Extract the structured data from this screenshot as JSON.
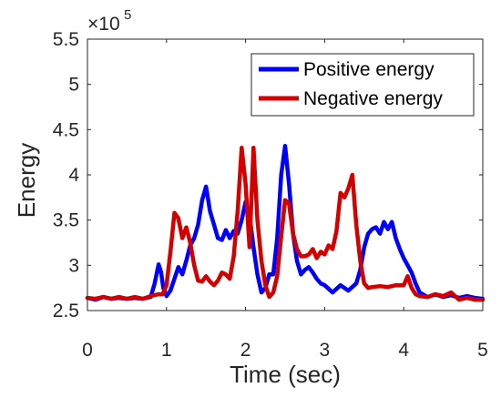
{
  "chart_data": {
    "type": "line",
    "title": "",
    "xlabel": "Time (sec)",
    "ylabel": "Energy",
    "xlim": [
      0,
      5
    ],
    "ylim": [
      250000,
      550000
    ],
    "xticks": [
      0,
      1,
      2,
      3,
      4,
      5
    ],
    "xtick_labels": [
      "0",
      "1",
      "2",
      "3",
      "4",
      "5"
    ],
    "yticks": [
      250000,
      300000,
      350000,
      400000,
      450000,
      500000,
      550000
    ],
    "ytick_labels": [
      "2.5",
      "3",
      "3.5",
      "4",
      "4.5",
      "5",
      "5.5"
    ],
    "y_exponent_base": "×10",
    "y_exponent_power": "5",
    "grid": false,
    "legend_position": "top-right",
    "series": [
      {
        "name": "Positive energy",
        "color": "#0000ff",
        "x": [
          0,
          0.1,
          0.2,
          0.3,
          0.4,
          0.5,
          0.6,
          0.7,
          0.8,
          0.85,
          0.9,
          0.93,
          0.96,
          1.0,
          1.05,
          1.1,
          1.15,
          1.2,
          1.25,
          1.3,
          1.35,
          1.4,
          1.45,
          1.5,
          1.55,
          1.6,
          1.65,
          1.7,
          1.75,
          1.8,
          1.85,
          1.9,
          1.95,
          2.0,
          2.05,
          2.1,
          2.15,
          2.2,
          2.25,
          2.3,
          2.35,
          2.4,
          2.45,
          2.5,
          2.55,
          2.6,
          2.65,
          2.7,
          2.75,
          2.8,
          2.85,
          2.9,
          2.95,
          3.0,
          3.1,
          3.2,
          3.3,
          3.4,
          3.45,
          3.5,
          3.55,
          3.6,
          3.65,
          3.7,
          3.75,
          3.8,
          3.85,
          3.9,
          3.95,
          4.0,
          4.05,
          4.1,
          4.15,
          4.2,
          4.3,
          4.4,
          4.5,
          4.6,
          4.7,
          4.8,
          4.9,
          5.0
        ],
        "y": [
          264000,
          262000,
          265000,
          263000,
          264000,
          263000,
          264000,
          263000,
          265000,
          280000,
          301000,
          293000,
          275000,
          266000,
          272000,
          285000,
          298000,
          290000,
          305000,
          322000,
          330000,
          345000,
          372000,
          387000,
          360000,
          345000,
          330000,
          328000,
          339000,
          330000,
          338000,
          335000,
          350000,
          370000,
          355000,
          320000,
          290000,
          270000,
          275000,
          290000,
          290000,
          330000,
          400000,
          432000,
          390000,
          335000,
          305000,
          290000,
          295000,
          298000,
          292000,
          285000,
          280000,
          278000,
          270000,
          278000,
          272000,
          280000,
          295000,
          320000,
          335000,
          340000,
          342000,
          335000,
          348000,
          340000,
          348000,
          330000,
          318000,
          308000,
          300000,
          292000,
          280000,
          270000,
          265000,
          268000,
          265000,
          267000,
          264000,
          266000,
          264000,
          263000
        ]
      },
      {
        "name": "Negative energy",
        "color": "#d40000",
        "x": [
          0,
          0.1,
          0.2,
          0.3,
          0.4,
          0.5,
          0.6,
          0.7,
          0.8,
          0.9,
          0.95,
          1.0,
          1.05,
          1.1,
          1.15,
          1.2,
          1.25,
          1.3,
          1.35,
          1.4,
          1.45,
          1.5,
          1.55,
          1.6,
          1.65,
          1.7,
          1.75,
          1.8,
          1.85,
          1.9,
          1.95,
          2.0,
          2.05,
          2.1,
          2.15,
          2.2,
          2.25,
          2.3,
          2.35,
          2.4,
          2.45,
          2.5,
          2.55,
          2.6,
          2.65,
          2.7,
          2.75,
          2.8,
          2.85,
          2.9,
          2.95,
          3.0,
          3.05,
          3.1,
          3.15,
          3.2,
          3.25,
          3.3,
          3.35,
          3.4,
          3.45,
          3.5,
          3.55,
          3.6,
          3.7,
          3.8,
          3.9,
          4.0,
          4.05,
          4.1,
          4.15,
          4.2,
          4.3,
          4.4,
          4.5,
          4.6,
          4.7,
          4.8,
          4.9,
          5.0
        ],
        "y": [
          264000,
          263000,
          265000,
          263000,
          265000,
          263000,
          265000,
          263000,
          266000,
          268000,
          268000,
          278000,
          315000,
          358000,
          352000,
          330000,
          342000,
          325000,
          300000,
          283000,
          282000,
          288000,
          282000,
          278000,
          283000,
          292000,
          290000,
          285000,
          310000,
          360000,
          430000,
          390000,
          320000,
          430000,
          350000,
          305000,
          278000,
          265000,
          270000,
          288000,
          332000,
          372000,
          368000,
          335000,
          318000,
          310000,
          310000,
          312000,
          318000,
          308000,
          315000,
          312000,
          322000,
          318000,
          338000,
          380000,
          375000,
          385000,
          400000,
          345000,
          305000,
          280000,
          275000,
          276000,
          277000,
          276000,
          278000,
          278000,
          288000,
          275000,
          268000,
          266000,
          265000,
          268000,
          266000,
          270000,
          262000,
          264000,
          262000,
          262000
        ]
      }
    ]
  }
}
